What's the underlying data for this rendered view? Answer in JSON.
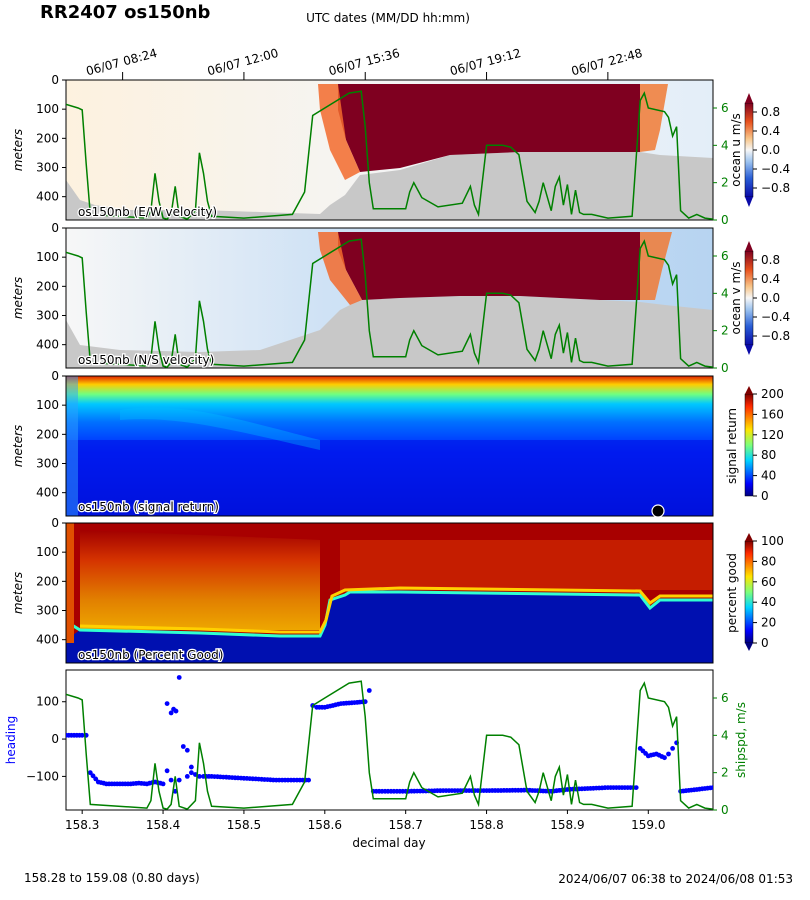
{
  "title": "RR2407 os150nb",
  "top_axis": {
    "label": "UTC dates (MM/DD hh:mm)",
    "ticks": [
      {
        "day": 158.35,
        "label": "06/07 08:24"
      },
      {
        "day": 158.5,
        "label": "06/07 12:00"
      },
      {
        "day": 158.65,
        "label": "06/07 15:36"
      },
      {
        "day": 158.8,
        "label": "06/07 19:12"
      },
      {
        "day": 158.95,
        "label": "06/07 22:48"
      }
    ]
  },
  "footer": {
    "left": "158.28 to 159.08 (0.80 days)",
    "right": "2024/06/07 06:38 to 2024/06/08 01:53"
  },
  "colors": {
    "ship_speed": "#008000",
    "heading": "#0000ff",
    "missing": "#c8c8c8",
    "velocity_high": "#7f0020",
    "colormap_velocity": "RdBu_r",
    "colormap_signal_and_pg": "jet"
  },
  "chart_data": [
    {
      "type": "heatmap",
      "name": "os150nb (E/W velocity)",
      "ylabel": "meters",
      "y_ticks": [
        0,
        100,
        200,
        300,
        400
      ],
      "ylim": [
        480,
        0
      ],
      "xlim": [
        158.28,
        159.08
      ],
      "colorbar": {
        "label": "ocean u m/s",
        "ticks": [
          "0.8",
          "0.4",
          "0.0",
          "−0.4",
          "−0.8"
        ],
        "range": [
          -1.0,
          1.0
        ]
      },
      "right_axis": {
        "ticks": [
          "6",
          "4",
          "2",
          "0"
        ],
        "range": [
          0,
          7.5
        ]
      }
    },
    {
      "type": "heatmap",
      "name": "os150nb (N/S velocity)",
      "ylabel": "meters",
      "y_ticks": [
        0,
        100,
        200,
        300,
        400
      ],
      "ylim": [
        480,
        0
      ],
      "xlim": [
        158.28,
        159.08
      ],
      "colorbar": {
        "label": "ocean v m/s",
        "ticks": [
          "0.8",
          "0.4",
          "0.0",
          "−0.4",
          "−0.8"
        ],
        "range": [
          -1.0,
          1.0
        ]
      },
      "right_axis": {
        "ticks": [
          "6",
          "4",
          "2",
          "0"
        ],
        "range": [
          0,
          7.5
        ]
      }
    },
    {
      "type": "heatmap",
      "name": "os150nb (signal return)",
      "ylabel": "meters",
      "y_ticks": [
        0,
        100,
        200,
        300,
        400
      ],
      "ylim": [
        480,
        0
      ],
      "xlim": [
        158.28,
        159.08
      ],
      "colorbar": {
        "label": "signal return",
        "ticks": [
          "200",
          "160",
          "120",
          "80",
          "40",
          "0"
        ],
        "range": [
          0,
          205
        ]
      }
    },
    {
      "type": "heatmap",
      "name": "os150nb (Percent Good)",
      "ylabel": "meters",
      "y_ticks": [
        0,
        100,
        200,
        300,
        400
      ],
      "ylim": [
        480,
        0
      ],
      "xlim": [
        158.28,
        159.08
      ],
      "colorbar": {
        "label": "percent good",
        "ticks": [
          "100",
          "80",
          "60",
          "40",
          "20",
          "0"
        ],
        "range": [
          0,
          100
        ]
      }
    },
    {
      "type": "line",
      "xlabel": "decimal day",
      "x_ticks": [
        "158.3",
        "158.4",
        "158.5",
        "158.6",
        "158.7",
        "158.8",
        "158.9",
        "159.0"
      ],
      "xlim": [
        158.28,
        159.08
      ],
      "ylabel": "heading",
      "ylim": [
        -190,
        185
      ],
      "y_ticks": [
        100,
        0,
        -100
      ],
      "ylabel_right": "shipspd, m/s",
      "ylim_right": [
        0,
        7.5
      ],
      "y_ticks_right": [
        6,
        4,
        2,
        0
      ],
      "series": [
        {
          "name": "shipspd",
          "x": [
            158.28,
            158.295,
            158.3,
            158.305,
            158.31,
            158.38,
            158.385,
            158.39,
            158.395,
            158.4,
            158.405,
            158.41,
            158.415,
            158.42,
            158.43,
            158.44,
            158.445,
            158.45,
            158.455,
            158.46,
            158.5,
            158.56,
            158.575,
            158.585,
            158.6,
            158.63,
            158.645,
            158.65,
            158.655,
            158.66,
            158.7,
            158.705,
            158.71,
            158.72,
            158.74,
            158.77,
            158.78,
            158.785,
            158.79,
            158.8,
            158.81,
            158.815,
            158.82,
            158.83,
            158.84,
            158.85,
            158.86,
            158.865,
            158.87,
            158.88,
            158.885,
            158.89,
            158.895,
            158.9,
            158.905,
            158.91,
            158.915,
            158.92,
            158.93,
            158.95,
            158.98,
            158.99,
            158.995,
            159.0,
            159.02,
            159.025,
            159.03,
            159.035,
            159.04,
            159.05,
            159.06,
            159.07,
            159.08
          ],
          "y": [
            6.2,
            6.0,
            5.9,
            3.0,
            0.3,
            0.1,
            0.5,
            2.5,
            1.0,
            0.1,
            0.05,
            0.3,
            1.8,
            0.2,
            0.05,
            0.5,
            3.6,
            2.5,
            1.0,
            0.2,
            0.1,
            0.3,
            1.5,
            5.6,
            6.0,
            6.8,
            6.9,
            5.0,
            2.0,
            0.6,
            0.6,
            1.5,
            2.0,
            1.2,
            0.7,
            0.9,
            1.8,
            0.8,
            0.3,
            4.0,
            4.0,
            4.0,
            4.0,
            3.9,
            3.5,
            1.0,
            0.4,
            1.0,
            2.0,
            0.5,
            1.8,
            2.3,
            0.8,
            1.9,
            0.3,
            1.6,
            0.4,
            0.3,
            0.3,
            0.1,
            0.2,
            6.4,
            6.8,
            6.0,
            5.8,
            5.5,
            4.5,
            5.0,
            0.5,
            0.1,
            0.3,
            0.1,
            0.05
          ]
        },
        {
          "name": "heading",
          "x": [
            158.28,
            158.3,
            158.305,
            158.31,
            158.32,
            158.33,
            158.36,
            158.37,
            158.38,
            158.39,
            158.4,
            158.405,
            158.41,
            158.415,
            158.42,
            158.425,
            158.43,
            158.435,
            158.44,
            158.445,
            158.45,
            158.46,
            158.5,
            158.54,
            158.58,
            158.585,
            158.59,
            158.6,
            158.62,
            158.65,
            158.655,
            158.66,
            158.7,
            158.75,
            158.8,
            158.85,
            158.88,
            158.9,
            158.95,
            158.985,
            158.99,
            159.0,
            159.01,
            159.02,
            159.025,
            159.03,
            159.035,
            159.04,
            159.06,
            159.08
          ],
          "y": [
            10,
            10,
            10,
            -90,
            -115,
            -120,
            -120,
            -118,
            -120,
            -115,
            -120,
            -85,
            -110,
            -140,
            -110,
            -20,
            -100,
            -90,
            -95,
            -100,
            -100,
            -100,
            -105,
            -110,
            -110,
            90,
            85,
            85,
            95,
            100,
            130,
            -140,
            -140,
            -138,
            -138,
            -137,
            -140,
            -135,
            -130,
            -130,
            -25,
            -45,
            -40,
            -50,
            -40,
            -25,
            -10,
            -140,
            -135,
            -130
          ]
        },
        {
          "name": "heading_outliers",
          "x": [
            158.405,
            158.41,
            158.413,
            158.416,
            158.42,
            158.43,
            158.435
          ],
          "y": [
            95,
            70,
            80,
            75,
            165,
            -30,
            -75
          ]
        }
      ]
    }
  ]
}
